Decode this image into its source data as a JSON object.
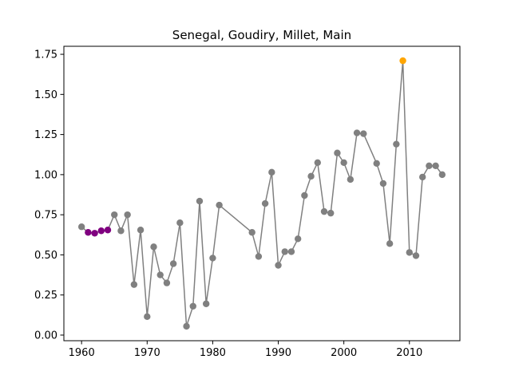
{
  "chart_data": {
    "type": "line",
    "title": "Senegal, Goudiry, Millet, Main",
    "xlabel": "",
    "ylabel": "",
    "xlim": [
      1957.3,
      2017.7
    ],
    "ylim": [
      -0.035,
      1.8
    ],
    "xticks": [
      1960,
      1970,
      1980,
      1990,
      2000,
      2010
    ],
    "yticks": [
      0.0,
      0.25,
      0.5,
      0.75,
      1.0,
      1.25,
      1.5,
      1.75
    ],
    "xtick_labels": [
      "1960",
      "1970",
      "1980",
      "1990",
      "2000",
      "2010"
    ],
    "ytick_labels": [
      "0.00",
      "0.25",
      "0.50",
      "0.75",
      "1.00",
      "1.25",
      "1.50",
      "1.75"
    ],
    "grid": false,
    "legend": "none",
    "line_color": "#808080",
    "point_color": "#808080",
    "highlight_colors": {
      "early": "#800080",
      "peak": "#FFA500"
    },
    "series": [
      {
        "x": [
          1960,
          1961,
          1962,
          1963,
          1964,
          1965,
          1966,
          1967,
          1968,
          1969,
          1970,
          1971,
          1972,
          1973,
          1974,
          1975,
          1976,
          1977,
          1978,
          1979,
          1980,
          1981,
          1986,
          1987,
          1988,
          1989,
          1990,
          1991,
          1992,
          1993,
          1994,
          1995,
          1996,
          1997,
          1998,
          1999,
          2000,
          2001,
          2002,
          2003,
          2005,
          2006,
          2007,
          2008,
          2009,
          2010,
          2011,
          2012,
          2013,
          2014,
          2015
        ],
        "values": [
          0.675,
          0.64,
          0.635,
          0.65,
          0.655,
          0.75,
          0.65,
          0.75,
          0.315,
          0.655,
          0.115,
          0.55,
          0.375,
          0.325,
          0.445,
          0.7,
          0.055,
          0.18,
          0.835,
          0.195,
          0.48,
          0.81,
          0.64,
          0.49,
          0.82,
          1.015,
          0.435,
          0.52,
          0.52,
          0.6,
          0.87,
          0.99,
          1.075,
          0.77,
          0.76,
          1.135,
          1.075,
          0.97,
          1.26,
          1.255,
          1.07,
          0.945,
          0.57,
          1.19,
          1.71,
          0.515,
          0.495,
          0.985,
          1.055,
          1.055,
          1.0
        ],
        "highlight": [
          "",
          "early",
          "early",
          "early",
          "early",
          "",
          "",
          "",
          "",
          "",
          "",
          "",
          "",
          "",
          "",
          "",
          "",
          "",
          "",
          "",
          "",
          "",
          "",
          "",
          "",
          "",
          "",
          "",
          "",
          "",
          "",
          "",
          "",
          "",
          "",
          "",
          "",
          "",
          "",
          "",
          "",
          "",
          "",
          "",
          "peak",
          "",
          "",
          "",
          "",
          "",
          ""
        ]
      }
    ]
  }
}
